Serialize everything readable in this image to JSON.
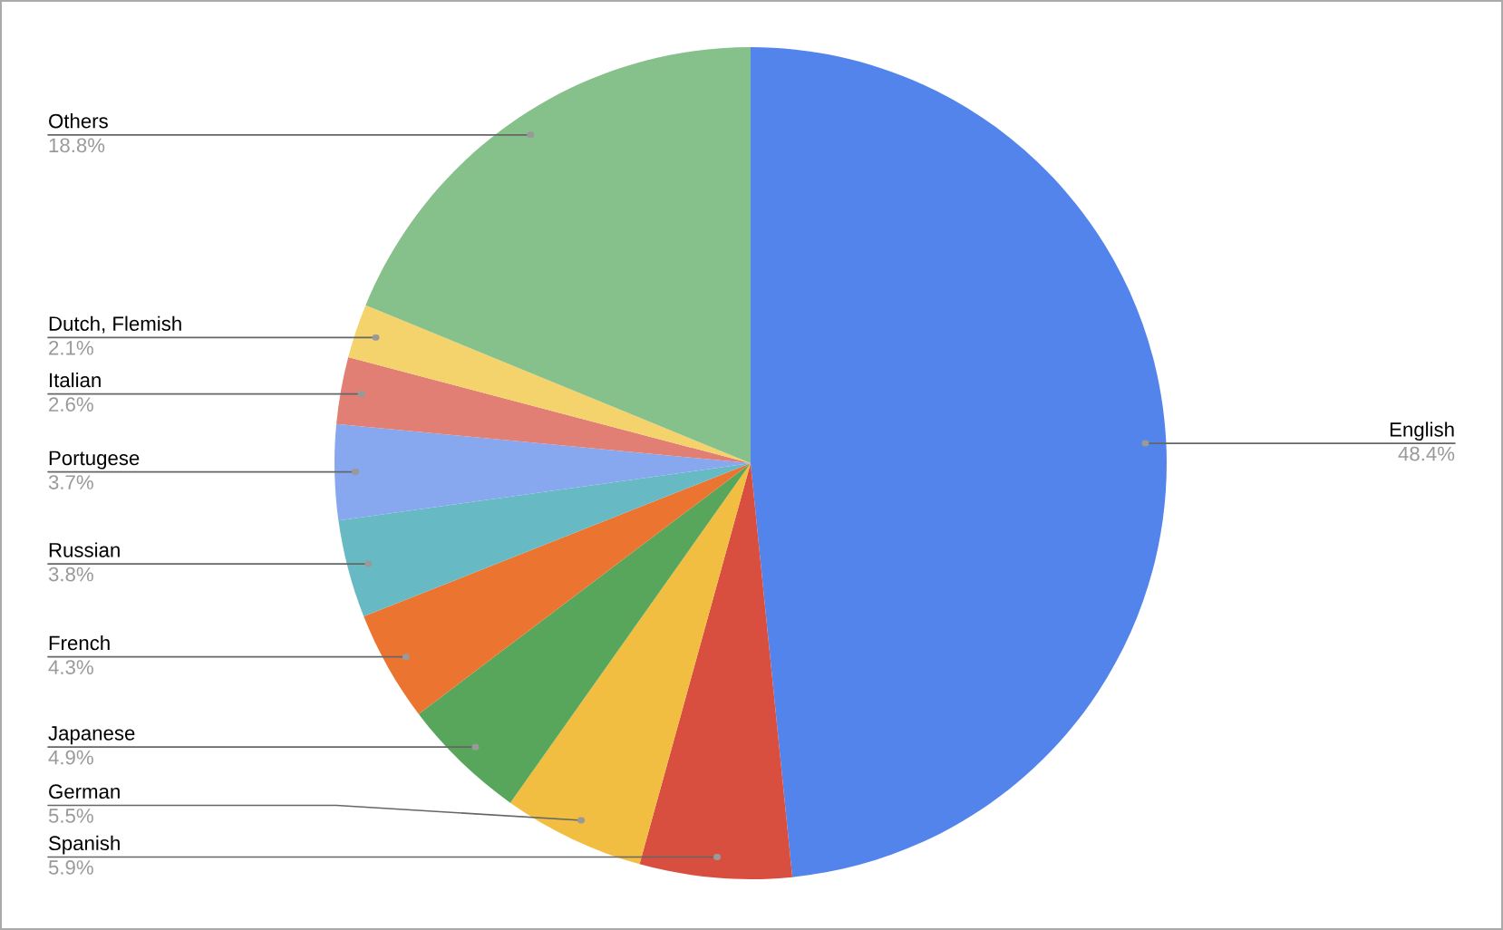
{
  "chart_data": {
    "type": "pie",
    "categories": [
      "English",
      "Spanish",
      "German",
      "Japanese",
      "French",
      "Russian",
      "Portugese",
      "Italian",
      "Dutch, Flemish",
      "Others"
    ],
    "values": [
      48.4,
      5.9,
      5.5,
      4.9,
      4.3,
      3.8,
      3.7,
      2.6,
      2.1,
      18.8
    ],
    "value_labels": [
      "48.4%",
      "5.9%",
      "5.5%",
      "4.9%",
      "4.3%",
      "3.8%",
      "3.7%",
      "2.6%",
      "2.1%",
      "18.8%"
    ],
    "colors": [
      "#5384ec",
      "#d94f3f",
      "#f1be41",
      "#58a65c",
      "#eb7530",
      "#67bac4",
      "#87a7ef",
      "#e17f75",
      "#f4d36c",
      "#86c08b"
    ],
    "legend": false
  }
}
